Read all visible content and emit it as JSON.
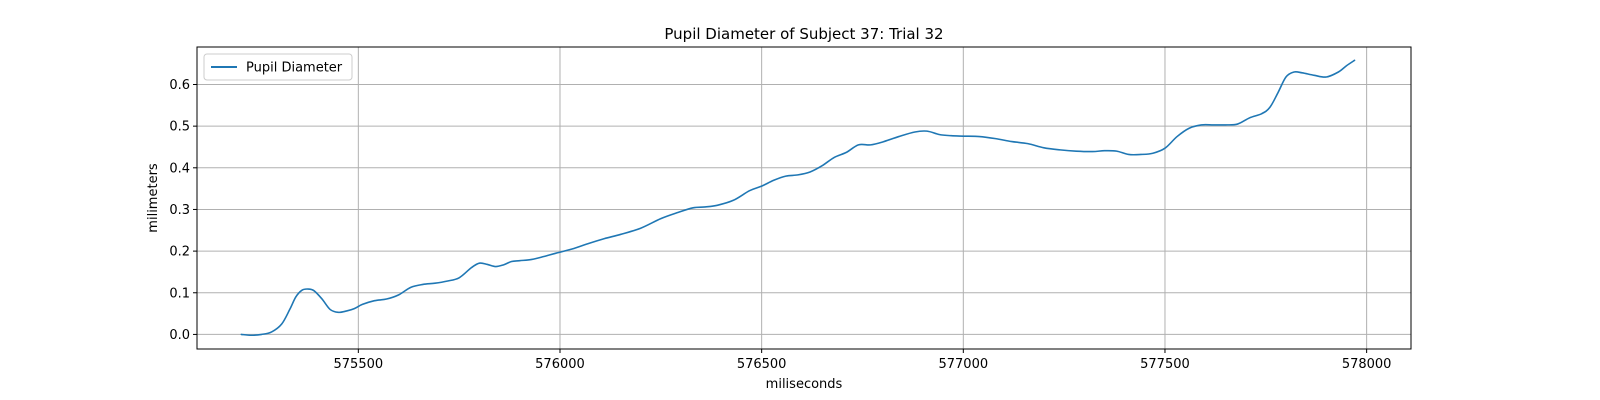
{
  "chart_data": {
    "type": "line",
    "title": "Pupil Diameter of Subject 37: Trial 32",
    "xlabel": "miliseconds",
    "ylabel": "milimeters",
    "xlim": [
      575100,
      578110
    ],
    "ylim": [
      -0.035,
      0.69
    ],
    "xticks": [
      575500,
      576000,
      576500,
      577000,
      577500,
      578000
    ],
    "yticks": [
      0.0,
      0.1,
      0.2,
      0.3,
      0.4,
      0.5,
      0.6
    ],
    "xtick_labels": [
      "575500",
      "576000",
      "576500",
      "577000",
      "577500",
      "578000"
    ],
    "ytick_labels": [
      "0.0",
      "0.1",
      "0.2",
      "0.3",
      "0.4",
      "0.5",
      "0.6"
    ],
    "grid": true,
    "legend_position": "top-left",
    "series": [
      {
        "name": "Pupil Diameter",
        "color": "#1f77b4",
        "x": [
          575210,
          575235,
          575260,
          575285,
          575310,
          575330,
          575345,
          575360,
          575375,
          575390,
          575410,
          575430,
          575450,
          575470,
          575490,
          575510,
          575540,
          575570,
          575600,
          575630,
          575660,
          575690,
          575720,
          575750,
          575780,
          575800,
          575820,
          575840,
          575860,
          575880,
          575900,
          575930,
          575960,
          575990,
          576030,
          576070,
          576110,
          576150,
          576200,
          576250,
          576290,
          576330,
          576360,
          576390,
          576430,
          576470,
          576500,
          576530,
          576560,
          576590,
          576620,
          576650,
          576680,
          576710,
          576740,
          576770,
          576800,
          576840,
          576880,
          576910,
          576940,
          576970,
          577000,
          577040,
          577080,
          577120,
          577160,
          577200,
          577240,
          577280,
          577320,
          577350,
          577380,
          577410,
          577440,
          577470,
          577500,
          577530,
          577560,
          577590,
          577620,
          577650,
          577680,
          577710,
          577740,
          577760,
          577780,
          577800,
          577820,
          577840,
          577870,
          577900,
          577930,
          577950,
          577970
        ],
        "y": [
          0.0,
          -0.002,
          0.0,
          0.006,
          0.025,
          0.06,
          0.09,
          0.106,
          0.109,
          0.105,
          0.085,
          0.06,
          0.053,
          0.056,
          0.062,
          0.072,
          0.081,
          0.085,
          0.095,
          0.113,
          0.12,
          0.123,
          0.128,
          0.136,
          0.16,
          0.171,
          0.168,
          0.163,
          0.167,
          0.175,
          0.177,
          0.18,
          0.187,
          0.195,
          0.205,
          0.218,
          0.23,
          0.24,
          0.255,
          0.278,
          0.292,
          0.304,
          0.306,
          0.31,
          0.322,
          0.345,
          0.356,
          0.37,
          0.38,
          0.383,
          0.39,
          0.405,
          0.425,
          0.437,
          0.455,
          0.455,
          0.462,
          0.475,
          0.486,
          0.488,
          0.48,
          0.477,
          0.476,
          0.475,
          0.47,
          0.463,
          0.458,
          0.448,
          0.443,
          0.44,
          0.439,
          0.441,
          0.44,
          0.432,
          0.432,
          0.435,
          0.447,
          0.475,
          0.495,
          0.503,
          0.503,
          0.503,
          0.505,
          0.52,
          0.53,
          0.545,
          0.58,
          0.618,
          0.63,
          0.628,
          0.622,
          0.618,
          0.63,
          0.645,
          0.658
        ]
      }
    ]
  },
  "legend": {
    "label": "Pupil Diameter"
  }
}
